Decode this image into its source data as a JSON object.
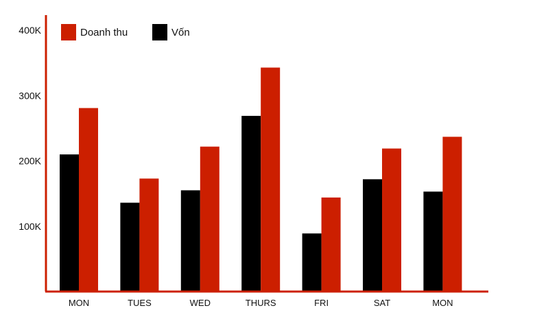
{
  "chart_data": {
    "type": "bar",
    "categories": [
      "MON",
      "TUES",
      "WED",
      "THURS",
      "FRI",
      "SAT",
      "MON"
    ],
    "series": [
      {
        "name": "Vốn",
        "color": "#000000",
        "values": [
          210,
          136,
          155,
          269,
          89,
          172,
          153
        ]
      },
      {
        "name": "Doanh thu",
        "color": "#cc1f00",
        "values": [
          281,
          173,
          222,
          343,
          144,
          219,
          237
        ]
      }
    ],
    "legend_order": [
      "Doanh thu",
      "Vốn"
    ],
    "legend_position": "top-left",
    "y_ticks": [
      {
        "value": 100,
        "label": "100K"
      },
      {
        "value": 200,
        "label": "200K"
      },
      {
        "value": 300,
        "label": "300K"
      },
      {
        "value": 400,
        "label": "400K"
      }
    ],
    "ylim": [
      0,
      420
    ],
    "grid": false,
    "axis_color": "#cc1f00"
  }
}
